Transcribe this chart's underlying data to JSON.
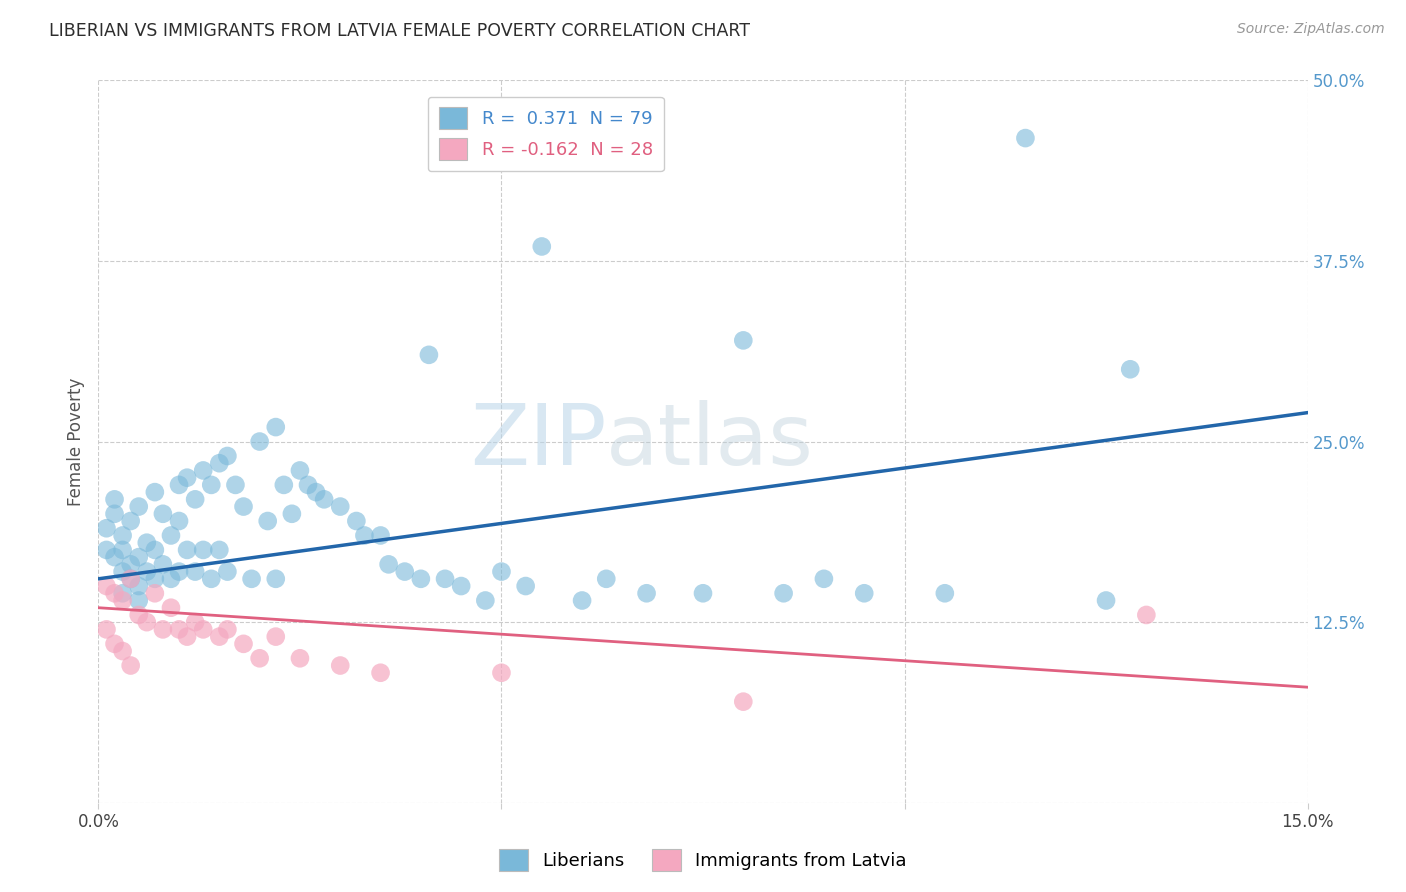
{
  "title": "LIBERIAN VS IMMIGRANTS FROM LATVIA FEMALE POVERTY CORRELATION CHART",
  "source": "Source: ZipAtlas.com",
  "ylabel": "Female Poverty",
  "xlim": [
    0.0,
    0.15
  ],
  "ylim": [
    0.0,
    0.5
  ],
  "R_blue": 0.371,
  "N_blue": 79,
  "R_pink": -0.162,
  "N_pink": 28,
  "legend_label_blue": "Liberians",
  "legend_label_pink": "Immigrants from Latvia",
  "watermark_zip": "ZIP",
  "watermark_atlas": "atlas",
  "title_color": "#2d2d2d",
  "title_fontsize": 12.5,
  "blue_color": "#7ab8d9",
  "blue_line_color": "#2266aa",
  "pink_color": "#f4a8c0",
  "pink_line_color": "#e06080",
  "background_color": "#ffffff",
  "grid_color": "#cccccc",
  "blue_line_y0": 0.155,
  "blue_line_y1": 0.27,
  "pink_line_y0": 0.135,
  "pink_line_y1": 0.08,
  "blue_points_x": [
    0.001,
    0.001,
    0.002,
    0.002,
    0.002,
    0.003,
    0.003,
    0.003,
    0.003,
    0.004,
    0.004,
    0.004,
    0.005,
    0.005,
    0.005,
    0.005,
    0.006,
    0.006,
    0.007,
    0.007,
    0.007,
    0.008,
    0.008,
    0.009,
    0.009,
    0.01,
    0.01,
    0.01,
    0.011,
    0.011,
    0.012,
    0.012,
    0.013,
    0.013,
    0.014,
    0.014,
    0.015,
    0.015,
    0.016,
    0.016,
    0.017,
    0.018,
    0.019,
    0.02,
    0.021,
    0.022,
    0.022,
    0.023,
    0.024,
    0.025,
    0.026,
    0.027,
    0.028,
    0.03,
    0.032,
    0.033,
    0.035,
    0.036,
    0.038,
    0.04,
    0.041,
    0.043,
    0.045,
    0.048,
    0.05,
    0.053,
    0.055,
    0.06,
    0.063,
    0.068,
    0.075,
    0.08,
    0.085,
    0.09,
    0.095,
    0.105,
    0.115,
    0.125,
    0.128
  ],
  "blue_points_y": [
    0.19,
    0.175,
    0.21,
    0.2,
    0.17,
    0.185,
    0.175,
    0.16,
    0.145,
    0.195,
    0.165,
    0.155,
    0.205,
    0.17,
    0.15,
    0.14,
    0.18,
    0.16,
    0.215,
    0.175,
    0.155,
    0.2,
    0.165,
    0.185,
    0.155,
    0.22,
    0.195,
    0.16,
    0.225,
    0.175,
    0.21,
    0.16,
    0.23,
    0.175,
    0.22,
    0.155,
    0.235,
    0.175,
    0.24,
    0.16,
    0.22,
    0.205,
    0.155,
    0.25,
    0.195,
    0.26,
    0.155,
    0.22,
    0.2,
    0.23,
    0.22,
    0.215,
    0.21,
    0.205,
    0.195,
    0.185,
    0.185,
    0.165,
    0.16,
    0.155,
    0.31,
    0.155,
    0.15,
    0.14,
    0.16,
    0.15,
    0.385,
    0.14,
    0.155,
    0.145,
    0.145,
    0.32,
    0.145,
    0.155,
    0.145,
    0.145,
    0.46,
    0.14,
    0.3
  ],
  "pink_points_x": [
    0.001,
    0.001,
    0.002,
    0.002,
    0.003,
    0.003,
    0.004,
    0.004,
    0.005,
    0.006,
    0.007,
    0.008,
    0.009,
    0.01,
    0.011,
    0.012,
    0.013,
    0.015,
    0.016,
    0.018,
    0.02,
    0.022,
    0.025,
    0.03,
    0.035,
    0.05,
    0.08,
    0.13
  ],
  "pink_points_y": [
    0.15,
    0.12,
    0.145,
    0.11,
    0.14,
    0.105,
    0.155,
    0.095,
    0.13,
    0.125,
    0.145,
    0.12,
    0.135,
    0.12,
    0.115,
    0.125,
    0.12,
    0.115,
    0.12,
    0.11,
    0.1,
    0.115,
    0.1,
    0.095,
    0.09,
    0.09,
    0.07,
    0.13
  ]
}
